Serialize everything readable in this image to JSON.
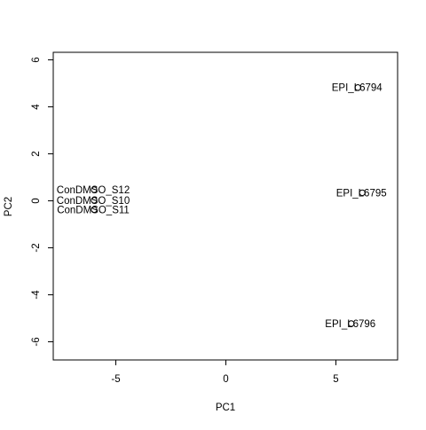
{
  "chart_data": {
    "type": "scatter",
    "title": "",
    "xlabel": "PC1",
    "ylabel": "PC2",
    "xlim": [
      -7.8,
      7.8
    ],
    "ylim": [
      -6.8,
      6.3
    ],
    "x_ticks": [
      -5,
      0,
      5
    ],
    "x_tick_labels": [
      "-5",
      "0",
      "5"
    ],
    "y_ticks": [
      -6,
      -4,
      -2,
      0,
      2,
      4,
      6
    ],
    "y_tick_labels": [
      "-6",
      "-4",
      "-2",
      "0",
      "2",
      "4",
      "6"
    ],
    "grid": false,
    "legend": "none",
    "point_color": "#000000",
    "points": [
      {
        "label": "ConDMSO_S12",
        "x": -5.95,
        "y": 0.45
      },
      {
        "label": "ConDMSO_S10",
        "x": -5.95,
        "y": 0.0
      },
      {
        "label": "ConDMSO_S11",
        "x": -5.95,
        "y": -0.4
      },
      {
        "label": "EPI_L6794",
        "x": 6.0,
        "y": 4.8
      },
      {
        "label": "EPI_L6795",
        "x": 6.2,
        "y": 0.32
      },
      {
        "label": "EPI_L6796",
        "x": 5.7,
        "y": -5.25
      }
    ]
  }
}
